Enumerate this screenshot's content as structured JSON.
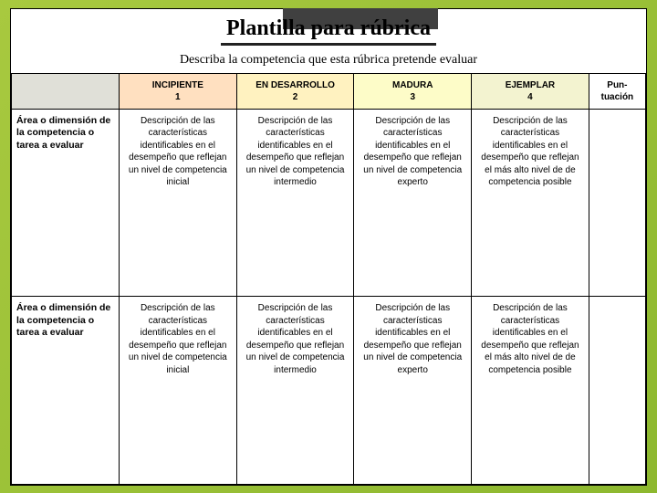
{
  "title": "Plantilla para rúbrica",
  "subtitle": "Describa la competencia que esta rúbrica pretende evaluar",
  "colors": {
    "header_blank_bg": "#e0e0d8",
    "level1_bg": "#ffe0c0",
    "level2_bg": "#fff2c0",
    "level3_bg": "#fdfcc8",
    "level4_bg": "#f3f3d0",
    "score_bg": "#ffffff",
    "row_bg": "#ffffff"
  },
  "headers": {
    "blank": "",
    "level1_name": "INCIPIENTE",
    "level1_num": "1",
    "level2_name": "EN DESARROLLO",
    "level2_num": "2",
    "level3_name": "MADURA",
    "level3_num": "3",
    "level4_name": "EJEMPLAR",
    "level4_num": "4",
    "score": "Pun-tuación"
  },
  "row_label": "Área o dimensión de la competencia o tarea a evaluar",
  "cells": {
    "inicial": "Descripción de las características identificables en el desempeño que reflejan un nivel de competencia inicial",
    "intermedio": "Descripción de las características identificables en el desempeño que reflejan un nivel de competencia intermedio",
    "experto": "Descripción de las características identificables en el desempeño que reflejan un nivel de competencia experto",
    "posible": "Descripción de las características identificables en el desempeño que reflejan el más alto nivel de de competencia posible"
  }
}
